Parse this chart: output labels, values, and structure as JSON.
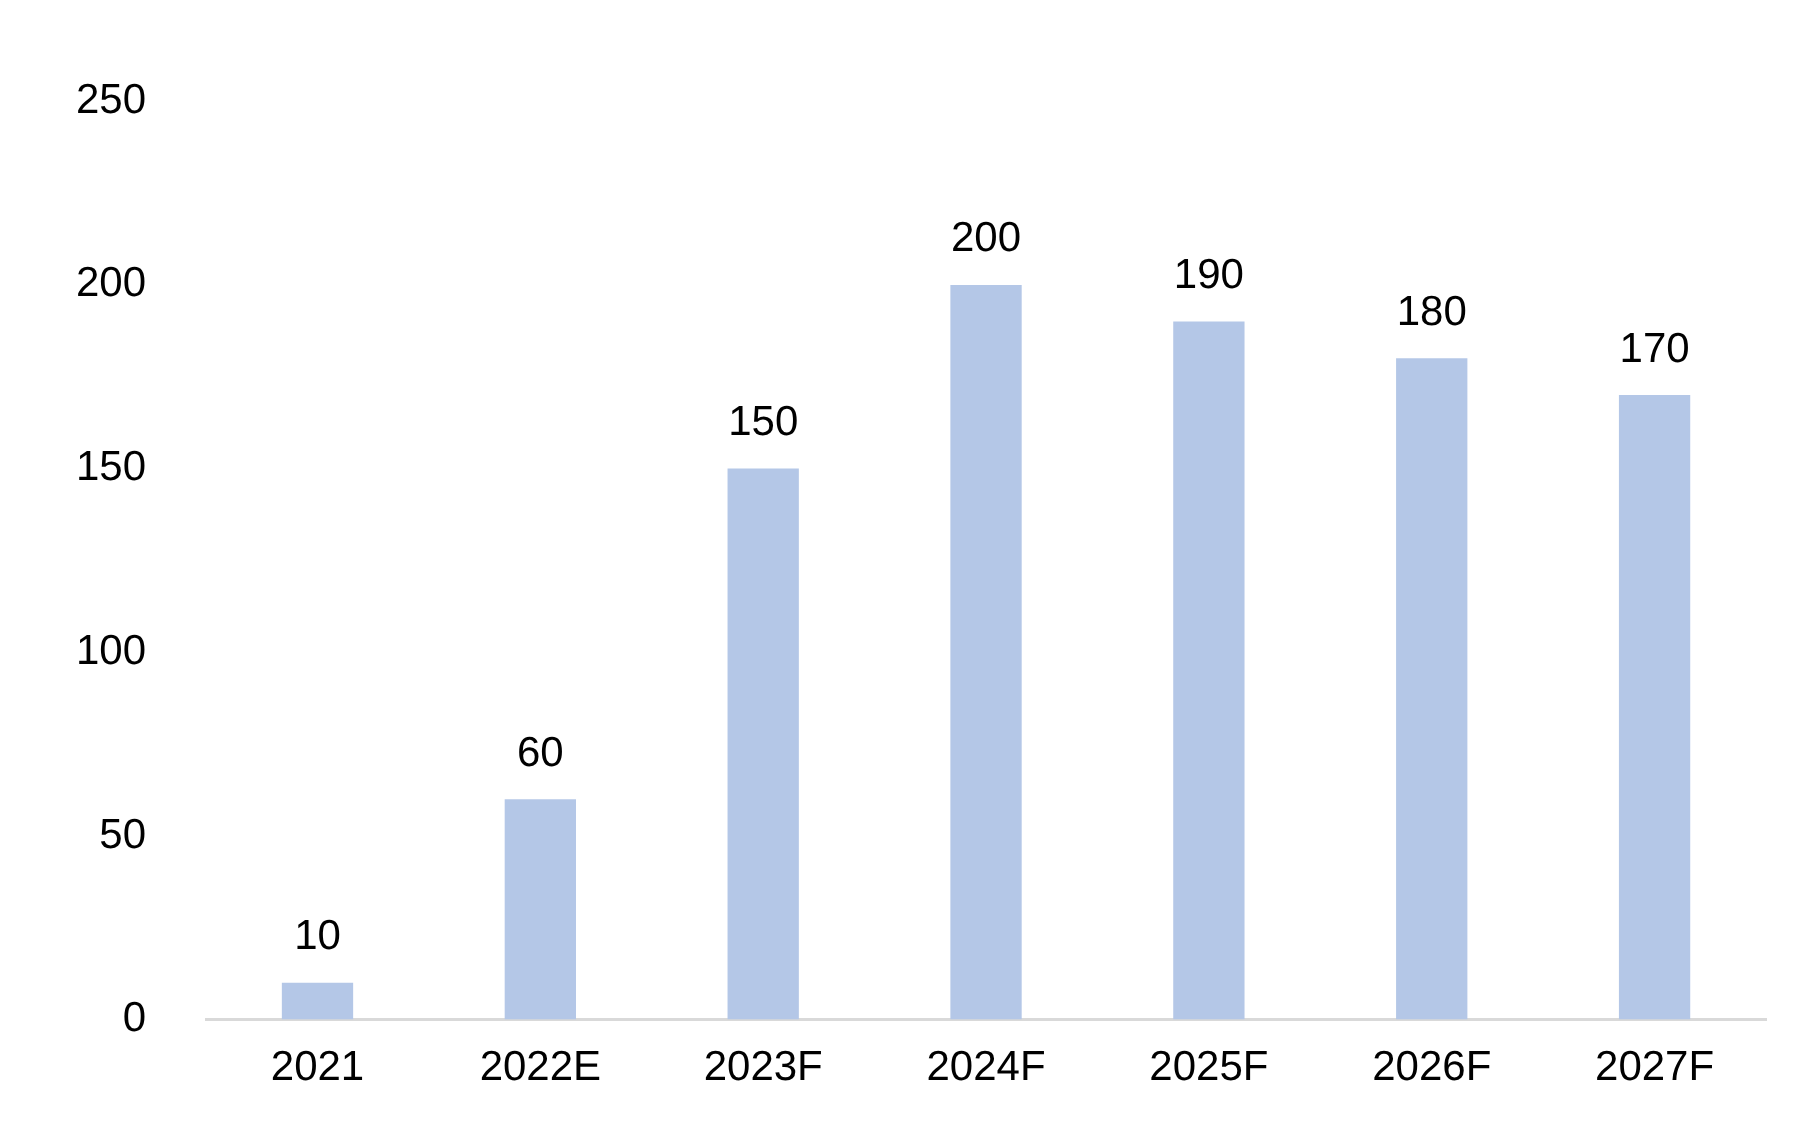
{
  "chart_data": {
    "type": "bar",
    "categories": [
      "2021",
      "2022E",
      "2023F",
      "2024F",
      "2025F",
      "2026F",
      "2027F"
    ],
    "values": [
      10,
      60,
      150,
      200,
      190,
      180,
      170
    ],
    "color": "#b4c7e7",
    "ylim": [
      0,
      250
    ],
    "yticks": [
      0,
      50,
      100,
      150,
      200,
      250
    ],
    "grid": false,
    "legend": false,
    "data_labels": true
  }
}
